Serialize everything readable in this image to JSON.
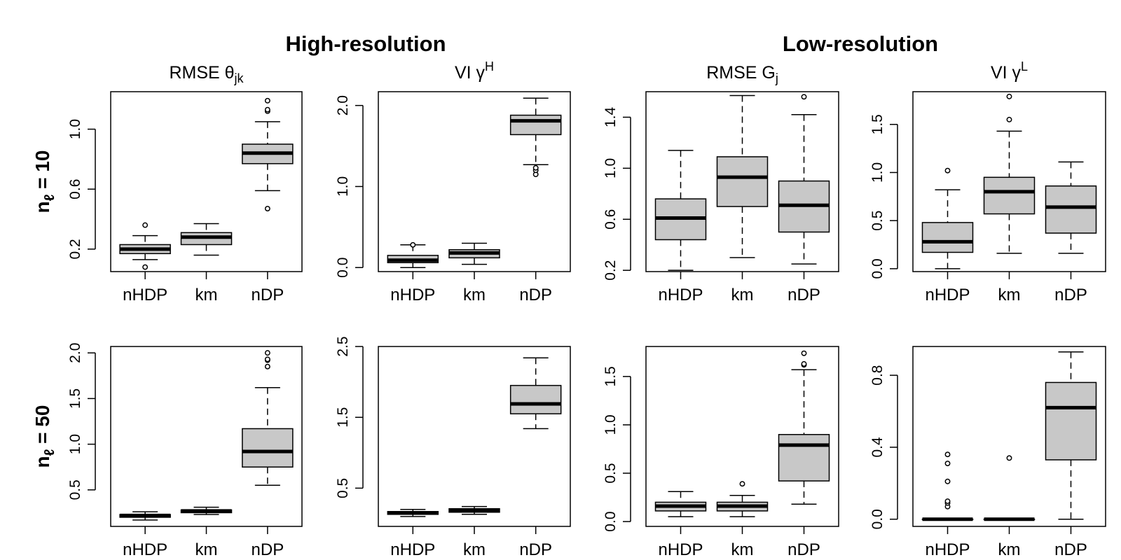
{
  "figure": {
    "section_titles": [
      "High-resolution",
      "Low-resolution"
    ],
    "row_labels": [
      {
        "main": "n",
        "sub": "ℓ",
        "suffix": " = 10"
      },
      {
        "main": "n",
        "sub": "ℓ",
        "suffix": " = 50"
      }
    ],
    "colors": {
      "box_fill": "#c8c8c8",
      "stroke": "#000000"
    }
  },
  "chart_data": [
    {
      "type": "box",
      "title": {
        "main": "RMSE θ",
        "sub": "jk",
        "sup": ""
      },
      "row": 0,
      "col": 0,
      "categories": [
        "nHDP",
        "km",
        "nDP"
      ],
      "ylim": [
        0.05,
        1.25
      ],
      "yticks": [
        0.2,
        0.6,
        1.0
      ],
      "ytick_labels": [
        "0.2",
        "0.6",
        "1.0"
      ],
      "boxes": [
        {
          "whislo": 0.13,
          "q1": 0.17,
          "med": 0.2,
          "q3": 0.23,
          "whishi": 0.29,
          "fliers": [
            0.08,
            0.36
          ]
        },
        {
          "whislo": 0.16,
          "q1": 0.23,
          "med": 0.28,
          "q3": 0.31,
          "whishi": 0.37,
          "fliers": []
        },
        {
          "whislo": 0.59,
          "q1": 0.77,
          "med": 0.84,
          "q3": 0.9,
          "whishi": 1.05,
          "fliers": [
            0.47,
            1.12,
            1.13,
            1.19
          ]
        }
      ]
    },
    {
      "type": "box",
      "title": {
        "main": "VI γ",
        "sub": "",
        "sup": "H"
      },
      "row": 0,
      "col": 1,
      "categories": [
        "nHDP",
        "km",
        "nDP"
      ],
      "ylim": [
        -0.05,
        2.17
      ],
      "yticks": [
        0.0,
        1.0,
        2.0
      ],
      "ytick_labels": [
        "0.0",
        "1.0",
        "2.0"
      ],
      "boxes": [
        {
          "whislo": 0.0,
          "q1": 0.06,
          "med": 0.09,
          "q3": 0.15,
          "whishi": 0.28,
          "fliers": [
            0.28
          ]
        },
        {
          "whislo": 0.04,
          "q1": 0.12,
          "med": 0.18,
          "q3": 0.22,
          "whishi": 0.3,
          "fliers": []
        },
        {
          "whislo": 1.27,
          "q1": 1.64,
          "med": 1.81,
          "q3": 1.88,
          "whishi": 2.09,
          "fliers": [
            1.15,
            1.2,
            1.23
          ]
        }
      ]
    },
    {
      "type": "box",
      "title": {
        "main": "RMSE G",
        "sub": "j",
        "sup": ""
      },
      "row": 0,
      "col": 2,
      "categories": [
        "nHDP",
        "km",
        "nDP"
      ],
      "ylim": [
        0.19,
        1.6
      ],
      "yticks": [
        0.2,
        0.6,
        1.0,
        1.4
      ],
      "ytick_labels": [
        "0.2",
        "0.6",
        "1.0",
        "1.4"
      ],
      "boxes": [
        {
          "whislo": 0.2,
          "q1": 0.44,
          "med": 0.61,
          "q3": 0.76,
          "whishi": 1.14,
          "fliers": []
        },
        {
          "whislo": 0.3,
          "q1": 0.7,
          "med": 0.93,
          "q3": 1.09,
          "whishi": 1.57,
          "fliers": []
        },
        {
          "whislo": 0.25,
          "q1": 0.5,
          "med": 0.71,
          "q3": 0.9,
          "whishi": 1.42,
          "fliers": [
            1.56
          ]
        }
      ]
    },
    {
      "type": "box",
      "title": {
        "main": "VI γ",
        "sub": "",
        "sup": "L"
      },
      "row": 0,
      "col": 3,
      "categories": [
        "nHDP",
        "km",
        "nDP"
      ],
      "ylim": [
        -0.03,
        1.84
      ],
      "yticks": [
        0.0,
        0.5,
        1.0,
        1.5
      ],
      "ytick_labels": [
        "0.0",
        "0.5",
        "1.0",
        "1.5"
      ],
      "boxes": [
        {
          "whislo": 0.0,
          "q1": 0.17,
          "med": 0.28,
          "q3": 0.48,
          "whishi": 0.82,
          "fliers": [
            1.02
          ]
        },
        {
          "whislo": 0.16,
          "q1": 0.57,
          "med": 0.8,
          "q3": 0.95,
          "whishi": 1.43,
          "fliers": [
            1.55,
            1.79
          ]
        },
        {
          "whislo": 0.16,
          "q1": 0.37,
          "med": 0.64,
          "q3": 0.86,
          "whishi": 1.11,
          "fliers": []
        }
      ]
    },
    {
      "type": "box",
      "title": {
        "main": "",
        "sub": "",
        "sup": ""
      },
      "row": 1,
      "col": 0,
      "categories": [
        "nHDP",
        "km",
        "nDP"
      ],
      "ylim": [
        0.1,
        2.07
      ],
      "yticks": [
        0.5,
        1.0,
        1.5,
        2.0
      ],
      "ytick_labels": [
        "0.5",
        "1.0",
        "1.5",
        "2.0"
      ],
      "boxes": [
        {
          "whislo": 0.17,
          "q1": 0.2,
          "med": 0.22,
          "q3": 0.23,
          "whishi": 0.26,
          "fliers": []
        },
        {
          "whislo": 0.23,
          "q1": 0.25,
          "med": 0.27,
          "q3": 0.28,
          "whishi": 0.31,
          "fliers": []
        },
        {
          "whislo": 0.55,
          "q1": 0.75,
          "med": 0.92,
          "q3": 1.17,
          "whishi": 1.62,
          "fliers": [
            1.85,
            1.92,
            1.93,
            2.0
          ]
        }
      ]
    },
    {
      "type": "box",
      "title": {
        "main": "",
        "sub": "",
        "sup": ""
      },
      "row": 1,
      "col": 1,
      "categories": [
        "nHDP",
        "km",
        "nDP"
      ],
      "ylim": [
        -0.04,
        2.5
      ],
      "yticks": [
        0.5,
        1.5,
        2.5
      ],
      "ytick_labels": [
        "0.5",
        "1.5",
        "2.5"
      ],
      "boxes": [
        {
          "whislo": 0.1,
          "q1": 0.13,
          "med": 0.15,
          "q3": 0.17,
          "whishi": 0.2,
          "fliers": []
        },
        {
          "whislo": 0.13,
          "q1": 0.16,
          "med": 0.18,
          "q3": 0.21,
          "whishi": 0.24,
          "fliers": []
        },
        {
          "whislo": 1.34,
          "q1": 1.55,
          "med": 1.69,
          "q3": 1.95,
          "whishi": 2.34,
          "fliers": []
        }
      ]
    },
    {
      "type": "box",
      "title": {
        "main": "",
        "sub": "",
        "sup": ""
      },
      "row": 1,
      "col": 2,
      "categories": [
        "nHDP",
        "km",
        "nDP"
      ],
      "ylim": [
        -0.05,
        1.81
      ],
      "yticks": [
        0.0,
        0.5,
        1.0,
        1.5
      ],
      "ytick_labels": [
        "0.0",
        "0.5",
        "1.0",
        "1.5"
      ],
      "boxes": [
        {
          "whislo": 0.05,
          "q1": 0.11,
          "med": 0.16,
          "q3": 0.2,
          "whishi": 0.31,
          "fliers": []
        },
        {
          "whislo": 0.05,
          "q1": 0.11,
          "med": 0.16,
          "q3": 0.2,
          "whishi": 0.27,
          "fliers": [
            0.39
          ]
        },
        {
          "whislo": 0.18,
          "q1": 0.42,
          "med": 0.79,
          "q3": 0.9,
          "whishi": 1.57,
          "fliers": [
            1.62,
            1.63,
            1.74
          ]
        }
      ]
    },
    {
      "type": "box",
      "title": {
        "main": "",
        "sub": "",
        "sup": ""
      },
      "row": 1,
      "col": 3,
      "categories": [
        "nHDP",
        "km",
        "nDP"
      ],
      "ylim": [
        -0.04,
        0.96
      ],
      "yticks": [
        0.0,
        0.4,
        0.8
      ],
      "ytick_labels": [
        "0.0",
        "0.4",
        "0.8"
      ],
      "boxes": [
        {
          "whislo": 0.0,
          "q1": 0.0,
          "med": 0.0,
          "q3": 0.0,
          "whishi": 0.0,
          "fliers": [
            0.07,
            0.09,
            0.1,
            0.21,
            0.31,
            0.36
          ]
        },
        {
          "whislo": 0.0,
          "q1": 0.0,
          "med": 0.0,
          "q3": 0.0,
          "whishi": 0.0,
          "fliers": [
            0.34
          ]
        },
        {
          "whislo": 0.0,
          "q1": 0.33,
          "med": 0.62,
          "q3": 0.76,
          "whishi": 0.93,
          "fliers": []
        }
      ]
    }
  ]
}
